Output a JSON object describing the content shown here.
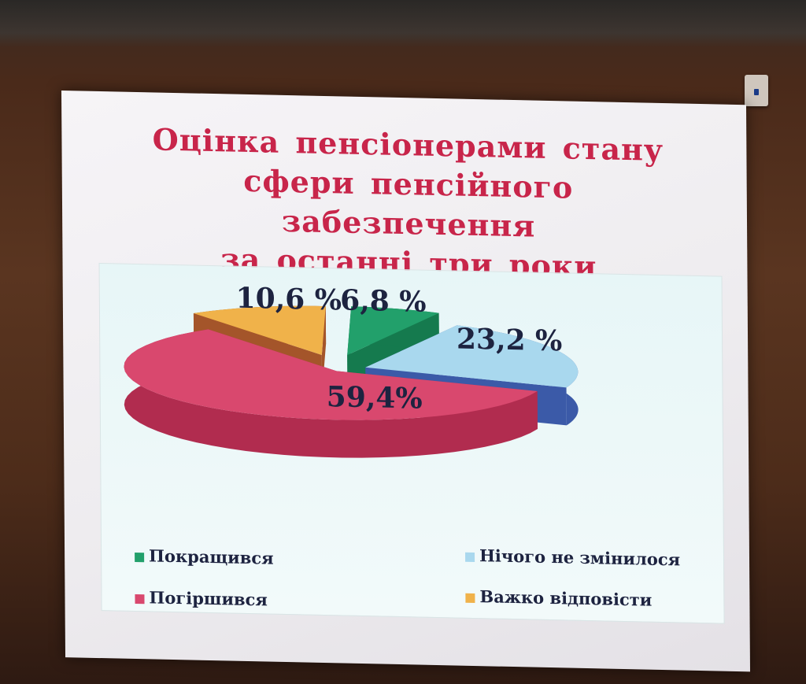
{
  "chart_data": {
    "type": "pie",
    "title_lines": [
      "Оцінка пенсіонерами стану",
      "сфери пенсійного забезпечення",
      "за останні три роки"
    ],
    "series": [
      {
        "name": "Покращився",
        "value": 6.8,
        "label": "6,8 %",
        "color": "#22a06b",
        "side_color": "#157a4e"
      },
      {
        "name": "Нічого не змінилося",
        "value": 23.2,
        "label": "23,2 %",
        "color": "#a9d8ee",
        "side_color": "#3b5aa8"
      },
      {
        "name": "Погіршився",
        "value": 59.4,
        "label": "59,4%",
        "color": "#d9486e",
        "side_color": "#b12c4f"
      },
      {
        "name": "Важко відповісти",
        "value": 10.6,
        "label": "10,6 %",
        "color": "#f0b24a",
        "side_color": "#a4552a"
      }
    ],
    "legend_position": "bottom",
    "style": "3d-exploded"
  },
  "colors": {
    "title": "#c8254a",
    "label_text": "#1d2340",
    "plot_background": "#e7f6f7"
  }
}
